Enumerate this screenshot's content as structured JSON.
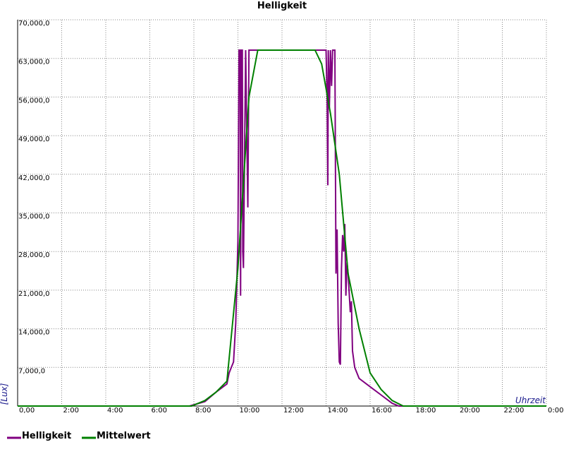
{
  "chart_data": {
    "type": "line",
    "title": "Helligkeit",
    "y_label": "[Lux]",
    "x_label": "Uhrzeit",
    "xlim": [
      0,
      24
    ],
    "ylim": [
      0,
      70000
    ],
    "grid": true,
    "xticks": [
      {
        "value": 0,
        "label": "0,00"
      },
      {
        "value": 2,
        "label": "2:00"
      },
      {
        "value": 4,
        "label": "4:00"
      },
      {
        "value": 6,
        "label": "6:00"
      },
      {
        "value": 8,
        "label": "8:00"
      },
      {
        "value": 10,
        "label": "10:00"
      },
      {
        "value": 12,
        "label": "12:00"
      },
      {
        "value": 14,
        "label": "14:00"
      },
      {
        "value": 16,
        "label": "16:00"
      },
      {
        "value": 18,
        "label": "18:00"
      },
      {
        "value": 20,
        "label": "20:00"
      },
      {
        "value": 22,
        "label": "22:00"
      },
      {
        "value": 24,
        "label": "0:00"
      }
    ],
    "yticks": [
      {
        "value": 7000,
        "label": "7,000,0"
      },
      {
        "value": 14000,
        "label": "14,000,0"
      },
      {
        "value": 21000,
        "label": "21,000,0"
      },
      {
        "value": 28000,
        "label": "28,000,0"
      },
      {
        "value": 35000,
        "label": "35,000,0"
      },
      {
        "value": 42000,
        "label": "42,000,0"
      },
      {
        "value": 49000,
        "label": "49,000,0"
      },
      {
        "value": 56000,
        "label": "56,000,0"
      },
      {
        "value": 63000,
        "label": "63,000,0"
      },
      {
        "value": 70000,
        "label": "70,000,0"
      }
    ],
    "series": [
      {
        "name": "Helligkeit",
        "color": "#800080",
        "x": [
          0,
          7.8,
          8.5,
          9,
          9.5,
          9.6,
          9.7,
          9.8,
          9.9,
          10.0,
          10.05,
          10.1,
          10.12,
          10.15,
          10.2,
          10.22,
          10.25,
          10.3,
          10.35,
          10.4,
          10.45,
          10.5,
          10.8,
          13.7,
          14.0,
          14.05,
          14.08,
          14.1,
          14.15,
          14.2,
          14.25,
          14.3,
          14.4,
          14.45,
          14.5,
          14.55,
          14.6,
          14.65,
          14.7,
          14.75,
          14.8,
          14.85,
          14.9,
          14.95,
          15.0,
          15.1,
          15.15,
          15.2,
          15.3,
          15.5,
          16,
          16.5,
          17,
          17.3,
          24
        ],
        "values": [
          0,
          0,
          800,
          2500,
          4000,
          6000,
          7000,
          8000,
          15000,
          30000,
          64500,
          64500,
          20000,
          64500,
          64500,
          28000,
          25000,
          45000,
          64500,
          50000,
          36000,
          64500,
          64500,
          64500,
          64500,
          55000,
          40000,
          64500,
          54000,
          64500,
          58000,
          64500,
          64500,
          24000,
          32000,
          15000,
          8000,
          7500,
          25000,
          31000,
          28000,
          33000,
          20000,
          26000,
          24000,
          17000,
          19000,
          10000,
          7000,
          5000,
          3500,
          2000,
          500,
          0,
          0
        ]
      },
      {
        "name": "Mittelwert",
        "color": "#008000",
        "x": [
          0,
          7.9,
          8.5,
          9,
          9.5,
          10,
          10.5,
          10.9,
          13.5,
          13.8,
          14.2,
          14.6,
          15,
          15.5,
          16,
          16.5,
          17,
          17.5,
          24
        ],
        "values": [
          0,
          0,
          1000,
          2500,
          4500,
          25000,
          56000,
          64500,
          64500,
          62000,
          53000,
          42000,
          24000,
          14000,
          6000,
          3000,
          1000,
          0,
          0
        ]
      }
    ]
  }
}
